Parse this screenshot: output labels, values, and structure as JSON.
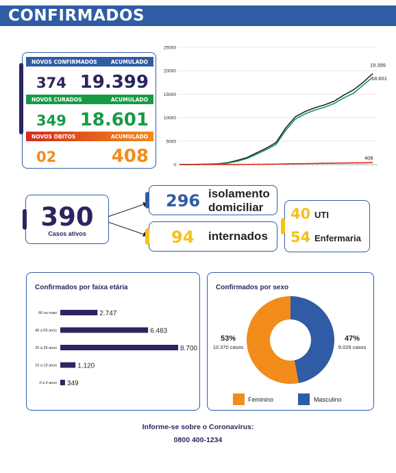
{
  "header": {
    "title": "CONFIRMADOS"
  },
  "stats": {
    "confirmed": {
      "label_new": "NOVOS CONFIRMADOS",
      "label_acc": "ACUMULADO",
      "new": "374",
      "acc": "19.399",
      "color": "#2f5ca5"
    },
    "recovered": {
      "label_new": "NOVOS CURADOS",
      "label_acc": "ACUMULADO",
      "new": "349",
      "acc": "18.601",
      "color": "#179a45"
    },
    "deaths": {
      "label_new": "NOVOS ÓBITOS",
      "label_acc": "ACUMULADO",
      "new": "02",
      "acc": "408",
      "color_start": "#d42a1f",
      "color_end": "#f28c1a"
    }
  },
  "active": {
    "value": "390",
    "label": "Casos ativos"
  },
  "isolation": {
    "value": "296",
    "label": "isolamento domiciliar"
  },
  "hospitalized": {
    "value": "94",
    "label": "internados"
  },
  "icu": {
    "value": "40",
    "label": "UTI"
  },
  "ward": {
    "value": "54",
    "label": "Enfermaria"
  },
  "age_panel": {
    "title": "Confirmados por faixa etária"
  },
  "sex_panel": {
    "title": "Confirmados por sexo"
  },
  "footer": {
    "line1": "Informe-se sobre o Coronavírus:",
    "line2": "0800 400-1234"
  },
  "chart_data": [
    {
      "type": "line",
      "title": "",
      "ylim": [
        0,
        25000
      ],
      "yticks": [
        "0",
        "5000",
        "10000",
        "15000",
        "20000",
        "25000"
      ],
      "grid": true,
      "x": [
        0,
        5,
        10,
        15,
        20,
        25,
        30,
        35,
        40,
        45,
        50,
        55,
        60,
        65,
        70,
        75,
        80,
        85,
        90,
        95,
        100
      ],
      "series": [
        {
          "name": "",
          "color": "#1d1d3f",
          "values": [
            0,
            20,
            40,
            80,
            150,
            400,
            900,
            1500,
            2500,
            3500,
            4700,
            7800,
            10200,
            11300,
            12100,
            12700,
            13500,
            14800,
            15900,
            17500,
            19399
          ],
          "end_label": "19.399"
        },
        {
          "name": "",
          "color": "#179a45",
          "values": [
            0,
            10,
            20,
            50,
            100,
            300,
            700,
            1300,
            2200,
            3200,
            4300,
            7300,
            9700,
            10800,
            11600,
            12200,
            13000,
            14200,
            15200,
            16900,
            18601
          ],
          "end_label": "18.601"
        },
        {
          "name": "",
          "color": "#e2231a",
          "values": [
            0,
            0,
            0,
            1,
            2,
            5,
            10,
            20,
            40,
            60,
            90,
            130,
            170,
            200,
            230,
            260,
            290,
            320,
            350,
            380,
            408
          ],
          "end_label": "408"
        }
      ]
    },
    {
      "type": "bar",
      "orientation": "horizontal",
      "categories": [
        "60 ou mais",
        "40 a 59 anos",
        "20 a 39 anos",
        "10 a 19 anos",
        "0 a 9 anos"
      ],
      "values": [
        2747,
        6483,
        8700,
        1120,
        349
      ],
      "value_labels": [
        "2.747",
        "6.483",
        "8.700",
        "1.120",
        "349"
      ],
      "color": "#2b2560"
    },
    {
      "type": "pie",
      "donut": true,
      "slices": [
        {
          "name": "Feminino",
          "percent": 53,
          "pct_label": "53%",
          "cases_label": "10.370 casos",
          "value": 10370,
          "color": "#f28c1a"
        },
        {
          "name": "Masculino",
          "percent": 47,
          "pct_label": "47%",
          "cases_label": "9.029 casos",
          "value": 9029,
          "color": "#2f5ca5"
        }
      ]
    }
  ]
}
